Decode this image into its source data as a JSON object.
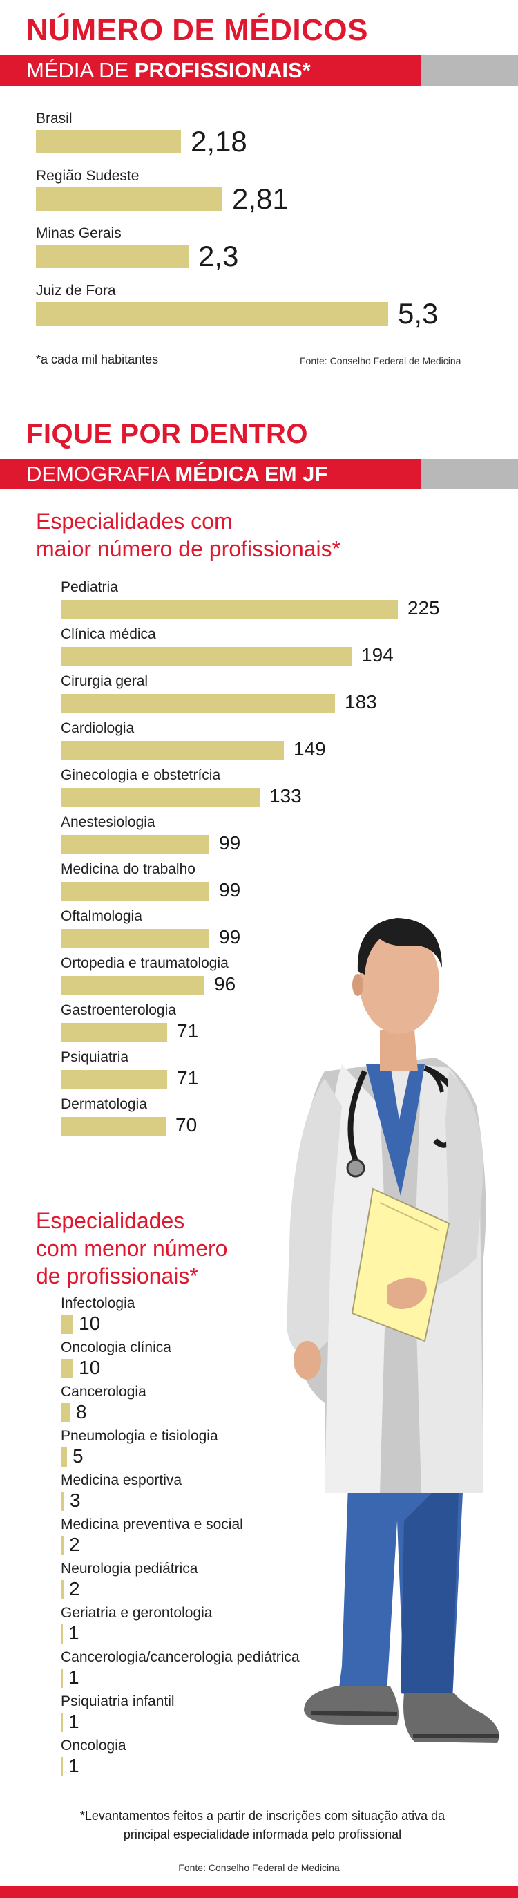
{
  "header1": {
    "title": "NÚMERO DE MÉDICOS",
    "banner_light": "MÉDIA DE ",
    "banner_bold": "PROFISSIONAIS*"
  },
  "chart1": {
    "note": "*a cada mil habitantes",
    "source": "Fonte: Conselho Federal de Medicina"
  },
  "header2": {
    "title": "FIQUE POR DENTRO",
    "banner_light": "DEMOGRAFIA ",
    "banner_bold": "MÉDICA EM JF"
  },
  "chart2": {
    "heading_line1": "Especialidades com",
    "heading_line2": "maior número de profissionais*"
  },
  "chart3": {
    "heading_line1": "Especialidades",
    "heading_line2": "com menor número",
    "heading_line3": "de profissionais*"
  },
  "footer": {
    "footnote_line1": "*Levantamentos feitos a partir de inscrições com situação ativa da",
    "footnote_line2": "principal especialidade informada pelo profissional",
    "source": "Fonte: Conselho Federal de Medicina"
  },
  "colors": {
    "accent_red": "#e0182f",
    "bar": "#d8cd82",
    "banner_gray": "#b8b8b8"
  },
  "chart_data": [
    {
      "type": "bar",
      "orientation": "horizontal",
      "title": "NÚMERO DE MÉDICOS",
      "subtitle": "MÉDIA DE PROFISSIONAIS*",
      "categories": [
        "Brasil",
        "Região Sudeste",
        "Minas Gerais",
        "Juiz de Fora"
      ],
      "values": [
        2.18,
        2.81,
        2.3,
        5.3
      ],
      "value_labels": [
        "2,18",
        "2,81",
        "2,3",
        "5,3"
      ],
      "xlim": [
        0,
        5.3
      ]
    },
    {
      "type": "bar",
      "orientation": "horizontal",
      "title": "Especialidades com maior número de profissionais*",
      "categories": [
        "Pediatria",
        "Clínica médica",
        "Cirurgia geral",
        "Cardiologia",
        "Ginecologia e obstetrícia",
        "Anestesiologia",
        "Medicina do trabalho",
        "Oftalmologia",
        "Ortopedia e traumatologia",
        "Gastroenterologia",
        "Psiquiatria",
        "Dermatologia"
      ],
      "values": [
        225,
        194,
        183,
        149,
        133,
        99,
        99,
        99,
        96,
        71,
        71,
        70
      ],
      "value_labels": [
        "225",
        "194",
        "183",
        "149",
        "133",
        "99",
        "99",
        "99",
        "96",
        "71",
        "71",
        "70"
      ],
      "xlim": [
        0,
        225
      ]
    },
    {
      "type": "bar",
      "orientation": "horizontal",
      "title": "Especialidades com menor número de profissionais*",
      "categories": [
        "Infectologia",
        "Oncologia clínica",
        "Cancerologia",
        "Pneumologia e tisiologia",
        "Medicina esportiva",
        "Medicina preventiva e social",
        "Neurologia pediátrica",
        "Geriatria e gerontologia",
        "Cancerologia/cancerologia pediátrica",
        "Psiquiatria infantil",
        "Oncologia"
      ],
      "values": [
        10,
        10,
        8,
        5,
        3,
        2,
        2,
        1,
        1,
        1,
        1
      ],
      "value_labels": [
        "10",
        "10",
        "8",
        "5",
        "3",
        "2",
        "2",
        "1",
        "1",
        "1",
        "1"
      ],
      "xlim": [
        0,
        10
      ]
    }
  ]
}
